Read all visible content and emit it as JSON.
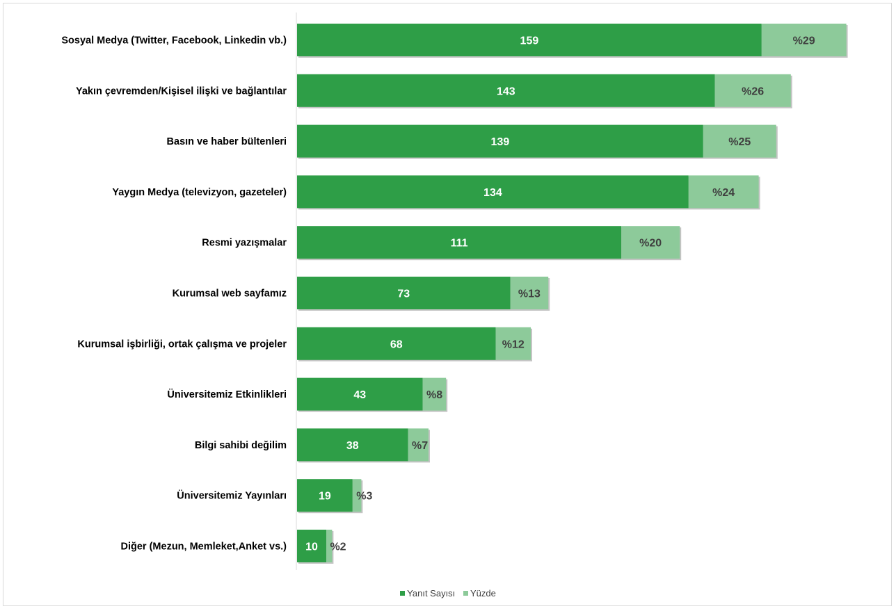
{
  "chart_data": {
    "type": "bar",
    "orientation": "horizontal",
    "stacked": true,
    "categories": [
      "Sosyal Medya (Twitter, Facebook, Linkedin vb.)",
      "Yakın çevremden/Kişisel ilişki ve bağlantılar",
      "Basın ve haber bültenleri",
      "Yaygın Medya (televizyon, gazeteler)",
      "Resmi yazışmalar",
      "Kurumsal web sayfamız",
      "Kurumsal işbirliği, ortak çalışma ve projeler",
      "Üniversitemiz Etkinlikleri",
      "Bilgi sahibi değilim",
      "Üniversitemiz Yayınları",
      "Diğer (Mezun, Memleket,Anket vs.)"
    ],
    "series": [
      {
        "name": "Yanıt Sayısı",
        "color": "#2e9e47",
        "values": [
          159,
          143,
          139,
          134,
          111,
          73,
          68,
          43,
          38,
          19,
          10
        ],
        "labels": [
          "159",
          "143",
          "139",
          "134",
          "111",
          "73",
          "68",
          "43",
          "38",
          "19",
          "10"
        ]
      },
      {
        "name": "Yüzde",
        "color": "#8dca9a",
        "values": [
          29,
          26,
          25,
          24,
          20,
          13,
          12,
          8,
          7,
          3,
          2
        ],
        "labels": [
          "%29",
          "%26",
          "%25",
          "%24",
          "%20",
          "%13",
          "%12",
          "%8",
          "%7",
          "%3",
          "%2"
        ]
      }
    ],
    "legend_position": "bottom",
    "grid": false
  }
}
